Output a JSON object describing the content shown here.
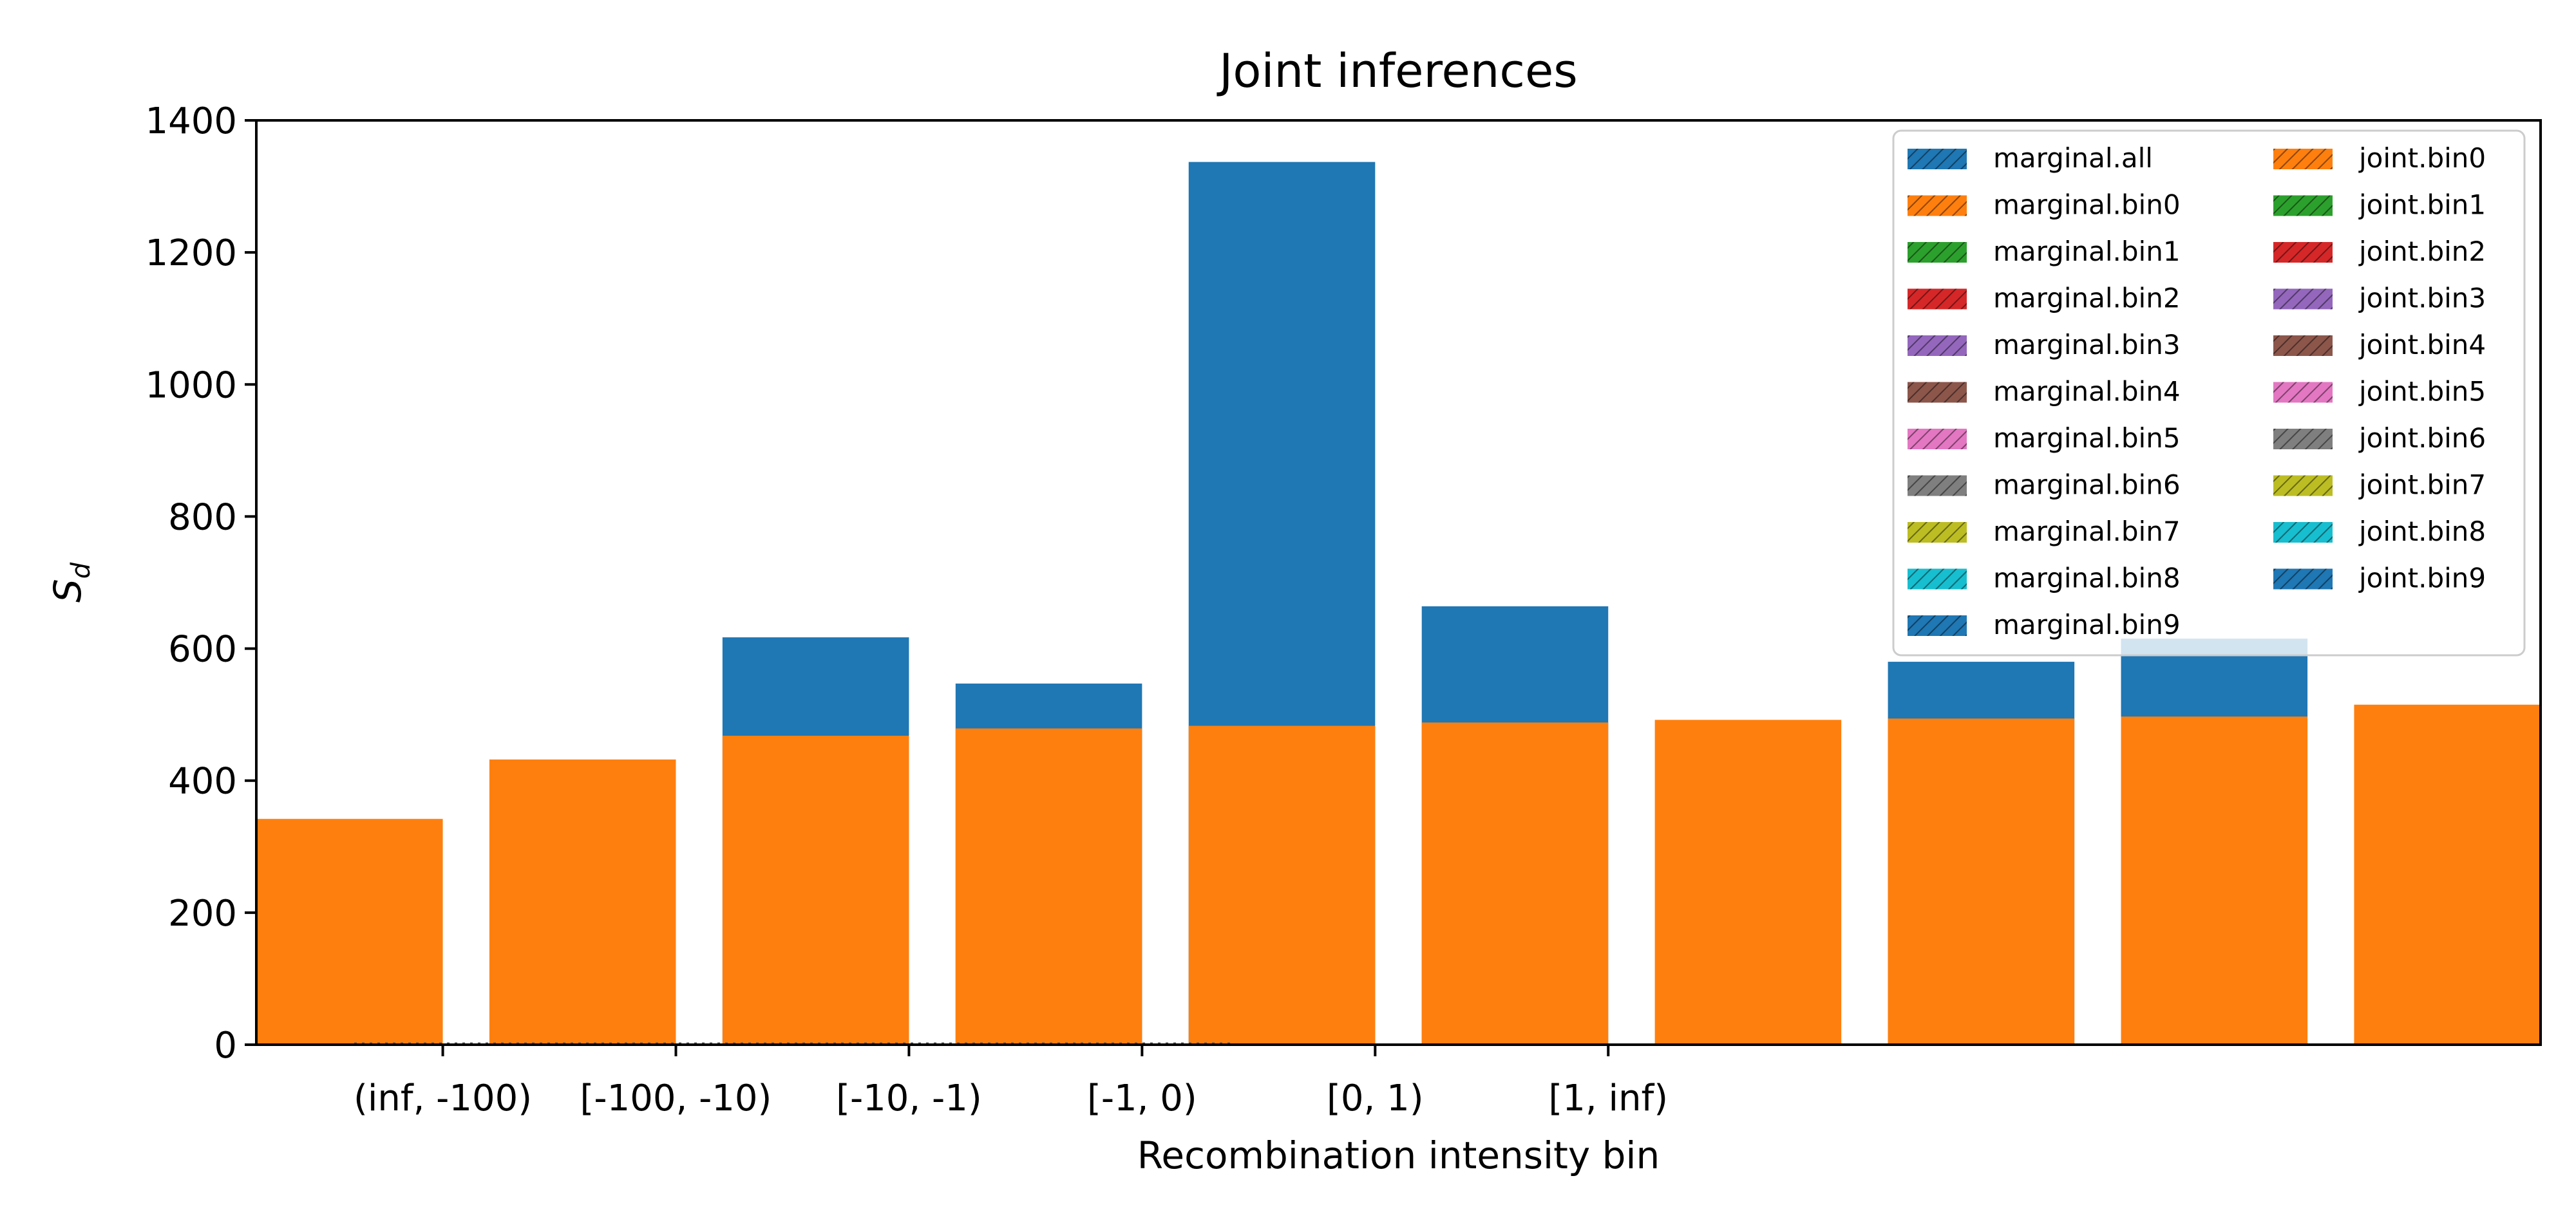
{
  "chart_data": {
    "type": "bar",
    "title": "Joint inferences",
    "xlabel": "Recombination intensity bin",
    "ylabel_main": "S",
    "ylabel_sub": "d",
    "ylim": [
      0,
      1400
    ],
    "yticks": [
      0,
      200,
      400,
      600,
      800,
      1000,
      1200,
      1400
    ],
    "tick_categories": [
      "(inf, -100)",
      "[-100, -10)",
      "[-10, -1)",
      "[-1, 0)",
      "[0, 1)",
      "[1, inf)"
    ],
    "bar_positions": [
      -0.4,
      0.6,
      1.6,
      2.6,
      3.6,
      4.6,
      5.6,
      6.6,
      7.6,
      8.6
    ],
    "tick_positions": [
      0,
      1,
      2,
      3,
      4,
      5
    ],
    "xlim": [
      -0.8,
      9.0
    ],
    "bar_width": 0.8,
    "series": [
      {
        "name": "marginal.all",
        "color": "#1f77b4",
        "values": [
          0,
          0,
          617,
          547,
          1337,
          664,
          0,
          580,
          615,
          0
        ]
      },
      {
        "name": "marginal.bin0",
        "color": "#ff7f0e",
        "values": [
          342,
          432,
          468,
          479,
          483,
          488,
          492,
          494,
          497,
          515
        ]
      }
    ],
    "grid": false,
    "legend": {
      "placement": "top-right",
      "columns": 2,
      "entries": [
        {
          "label": "marginal.all",
          "color": "#1f77b4"
        },
        {
          "label": "marginal.bin0",
          "color": "#ff7f0e"
        },
        {
          "label": "marginal.bin1",
          "color": "#2ca02c"
        },
        {
          "label": "marginal.bin2",
          "color": "#d62728"
        },
        {
          "label": "marginal.bin3",
          "color": "#9467bd"
        },
        {
          "label": "marginal.bin4",
          "color": "#8c564b"
        },
        {
          "label": "marginal.bin5",
          "color": "#e377c2"
        },
        {
          "label": "marginal.bin6",
          "color": "#7f7f7f"
        },
        {
          "label": "marginal.bin7",
          "color": "#bcbd22"
        },
        {
          "label": "marginal.bin8",
          "color": "#17becf"
        },
        {
          "label": "marginal.bin9",
          "color": "#1f77b4"
        },
        {
          "label": "joint.bin0",
          "color": "#ff7f0e"
        },
        {
          "label": "joint.bin1",
          "color": "#2ca02c"
        },
        {
          "label": "joint.bin2",
          "color": "#d62728"
        },
        {
          "label": "joint.bin3",
          "color": "#9467bd"
        },
        {
          "label": "joint.bin4",
          "color": "#8c564b"
        },
        {
          "label": "joint.bin5",
          "color": "#e377c2"
        },
        {
          "label": "joint.bin6",
          "color": "#7f7f7f"
        },
        {
          "label": "joint.bin7",
          "color": "#bcbd22"
        },
        {
          "label": "joint.bin8",
          "color": "#17becf"
        },
        {
          "label": "joint.bin9",
          "color": "#1f77b4"
        }
      ]
    }
  }
}
